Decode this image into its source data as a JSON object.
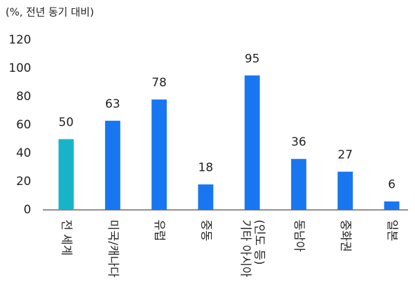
{
  "chart_data": {
    "type": "bar",
    "title": "(%, 전년 동기 대비)",
    "categories": [
      "전 세계",
      "미국/캐나다",
      "유럽",
      "중동",
      "기타 아시아\n(인도 등)",
      "동남아",
      "중화권",
      "일본"
    ],
    "values": [
      50,
      63,
      78,
      18,
      95,
      36,
      27,
      6
    ],
    "colors": [
      "#17b4c9",
      "#1877f0",
      "#1877f0",
      "#1877f0",
      "#1877f0",
      "#1877f0",
      "#1877f0",
      "#1877f0"
    ],
    "ylim": [
      0,
      120
    ],
    "yticks": [
      0,
      20,
      40,
      60,
      80,
      100,
      120
    ],
    "grid": false
  }
}
